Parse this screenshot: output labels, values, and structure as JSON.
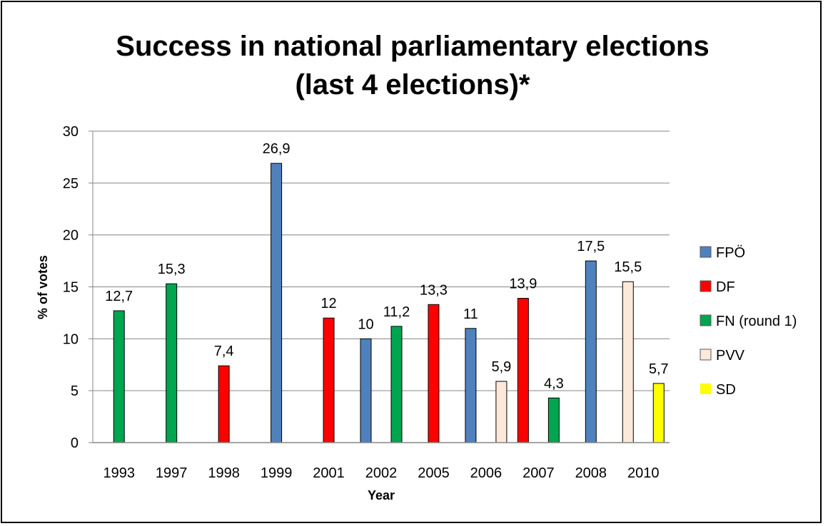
{
  "chart_data": {
    "type": "bar",
    "title": [
      "Success in national parliamentary elections",
      "(last 4 elections)*"
    ],
    "xlabel": "Year",
    "ylabel": "% of votes",
    "ylim": [
      0,
      30
    ],
    "yticks": [
      0,
      5,
      10,
      15,
      20,
      25,
      30
    ],
    "grid": true,
    "legend_position": "right",
    "categories": [
      "1993",
      "1997",
      "1998",
      "1999",
      "2001",
      "2002",
      "2005",
      "2006",
      "2007",
      "2008",
      "2010"
    ],
    "series": [
      {
        "name": "FPÖ",
        "color": "#4f81bd",
        "values": [
          null,
          null,
          null,
          26.9,
          null,
          10,
          null,
          11,
          null,
          17.5,
          null
        ],
        "labels": [
          null,
          null,
          null,
          "26,9",
          null,
          "10",
          null,
          "11",
          null,
          "17,5",
          null
        ]
      },
      {
        "name": "DF",
        "color": "#ff0000",
        "values": [
          null,
          null,
          7.4,
          null,
          12,
          null,
          13.3,
          null,
          13.9,
          null,
          null
        ],
        "labels": [
          null,
          null,
          "7,4",
          null,
          "12",
          null,
          "13,3",
          null,
          "13,9",
          null,
          null
        ]
      },
      {
        "name": "FN (round 1)",
        "color": "#00a550",
        "values": [
          12.7,
          15.3,
          null,
          null,
          null,
          11.2,
          null,
          null,
          4.3,
          null,
          null
        ],
        "labels": [
          "12,7",
          "15,3",
          null,
          null,
          null,
          "11,2",
          null,
          null,
          "4,3",
          null,
          null
        ]
      },
      {
        "name": "PVV",
        "color": "#fde9d9",
        "values": [
          null,
          null,
          null,
          null,
          null,
          null,
          null,
          5.9,
          null,
          null,
          15.5
        ],
        "labels": [
          null,
          null,
          null,
          null,
          null,
          null,
          null,
          "5,9",
          null,
          null,
          "15,5"
        ]
      },
      {
        "name": "SD",
        "color": "#ffff00",
        "values": [
          null,
          null,
          null,
          null,
          null,
          null,
          null,
          null,
          null,
          null,
          5.7
        ],
        "labels": [
          null,
          null,
          null,
          null,
          null,
          null,
          null,
          null,
          null,
          null,
          "5,7"
        ]
      }
    ]
  }
}
